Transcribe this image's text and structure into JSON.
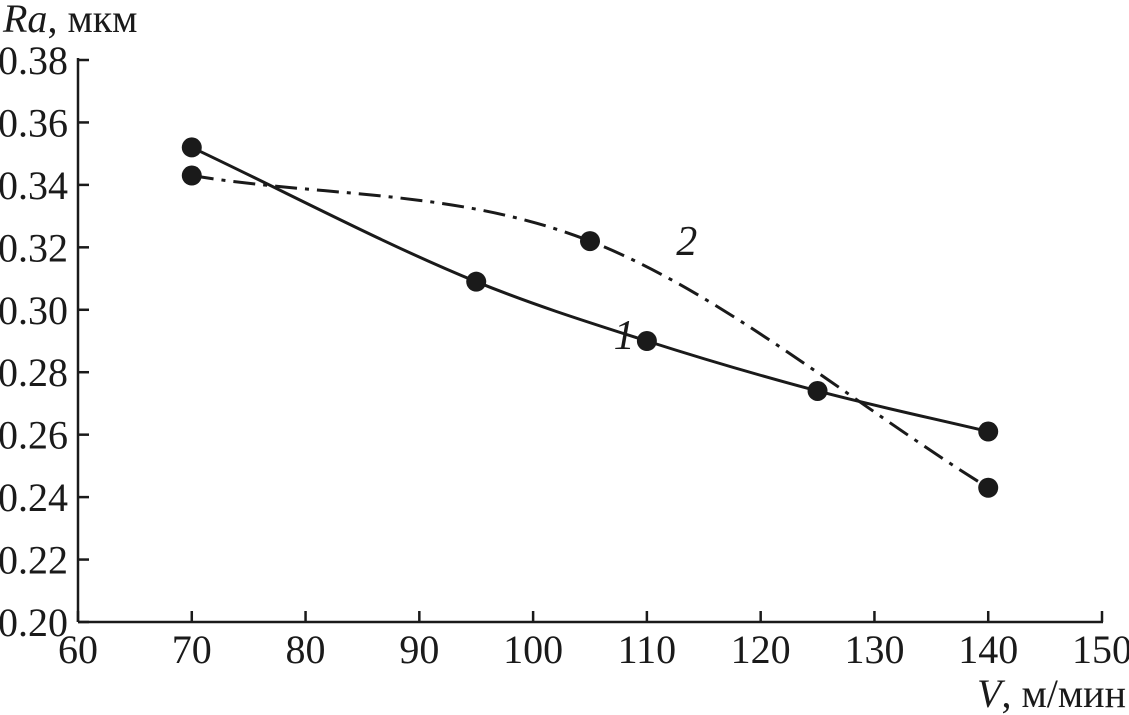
{
  "chart_data": {
    "type": "line",
    "y_label": {
      "italic": "Ra",
      "rest": ", мкм"
    },
    "x_label": {
      "italic": "V",
      "rest": ", м/мин"
    },
    "xlim": [
      60,
      150
    ],
    "ylim": [
      0.2,
      0.38
    ],
    "x_ticks": [
      60,
      70,
      80,
      90,
      100,
      110,
      120,
      130,
      140,
      150
    ],
    "x_tick_labels": [
      "60",
      "70",
      "80",
      "90",
      "100",
      "110",
      "120",
      "130",
      "140",
      "150"
    ],
    "y_ticks": [
      0.2,
      0.22,
      0.24,
      0.26,
      0.28,
      0.3,
      0.32,
      0.34,
      0.36,
      0.38
    ],
    "y_tick_labels": [
      "0.20",
      "0.22",
      "0.24",
      "0.26",
      "0.28",
      "0.30",
      "0.32",
      "0.34",
      "0.36",
      "0.38"
    ],
    "grid": false,
    "series": [
      {
        "name": "1",
        "line_style": "solid",
        "x": [
          70,
          95,
          110,
          125,
          140
        ],
        "y": [
          0.352,
          0.309,
          0.29,
          0.274,
          0.261
        ],
        "label_at": [
          108,
          0.292
        ]
      },
      {
        "name": "2",
        "line_style": "dash-dot",
        "x": [
          70,
          105,
          140
        ],
        "y": [
          0.343,
          0.322,
          0.243
        ],
        "label_at": [
          113.5,
          0.322
        ]
      }
    ],
    "color": "#1a1a1a"
  }
}
